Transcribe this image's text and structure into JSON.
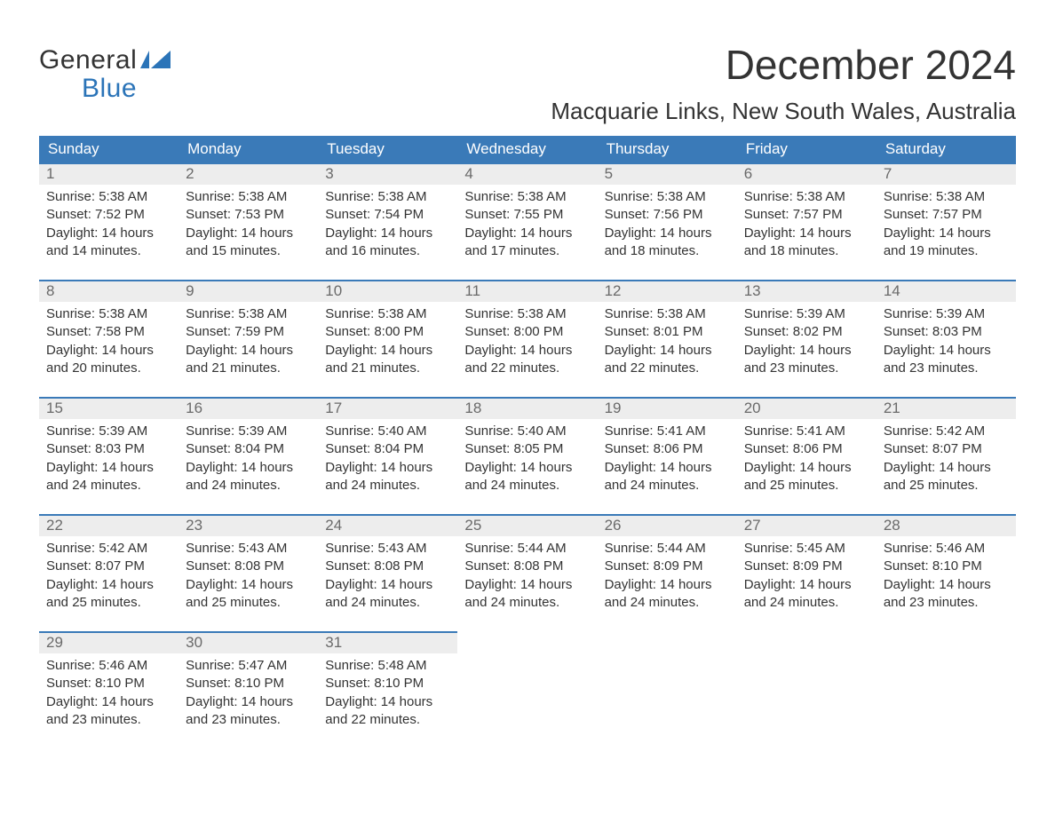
{
  "logo": {
    "line1": "General",
    "line2": "Blue",
    "flag_color": "#2b74b8"
  },
  "title": "December 2024",
  "location": "Macquarie Links, New South Wales, Australia",
  "colors": {
    "header_bg": "#3a7ab8",
    "header_text": "#ffffff",
    "daynum_bg": "#ededed",
    "daynum_text": "#6a6a6a",
    "body_text": "#333333",
    "border": "#3a7ab8",
    "background": "#ffffff"
  },
  "typography": {
    "title_fontsize": 46,
    "location_fontsize": 26,
    "header_fontsize": 17,
    "daynum_fontsize": 17,
    "body_fontsize": 15,
    "logo_fontsize": 30,
    "font_family": "Arial"
  },
  "week_headers": [
    "Sunday",
    "Monday",
    "Tuesday",
    "Wednesday",
    "Thursday",
    "Friday",
    "Saturday"
  ],
  "days": [
    {
      "n": "1",
      "sunrise": "5:38 AM",
      "sunset": "7:52 PM",
      "daylight": "14 hours and 14 minutes."
    },
    {
      "n": "2",
      "sunrise": "5:38 AM",
      "sunset": "7:53 PM",
      "daylight": "14 hours and 15 minutes."
    },
    {
      "n": "3",
      "sunrise": "5:38 AM",
      "sunset": "7:54 PM",
      "daylight": "14 hours and 16 minutes."
    },
    {
      "n": "4",
      "sunrise": "5:38 AM",
      "sunset": "7:55 PM",
      "daylight": "14 hours and 17 minutes."
    },
    {
      "n": "5",
      "sunrise": "5:38 AM",
      "sunset": "7:56 PM",
      "daylight": "14 hours and 18 minutes."
    },
    {
      "n": "6",
      "sunrise": "5:38 AM",
      "sunset": "7:57 PM",
      "daylight": "14 hours and 18 minutes."
    },
    {
      "n": "7",
      "sunrise": "5:38 AM",
      "sunset": "7:57 PM",
      "daylight": "14 hours and 19 minutes."
    },
    {
      "n": "8",
      "sunrise": "5:38 AM",
      "sunset": "7:58 PM",
      "daylight": "14 hours and 20 minutes."
    },
    {
      "n": "9",
      "sunrise": "5:38 AM",
      "sunset": "7:59 PM",
      "daylight": "14 hours and 21 minutes."
    },
    {
      "n": "10",
      "sunrise": "5:38 AM",
      "sunset": "8:00 PM",
      "daylight": "14 hours and 21 minutes."
    },
    {
      "n": "11",
      "sunrise": "5:38 AM",
      "sunset": "8:00 PM",
      "daylight": "14 hours and 22 minutes."
    },
    {
      "n": "12",
      "sunrise": "5:38 AM",
      "sunset": "8:01 PM",
      "daylight": "14 hours and 22 minutes."
    },
    {
      "n": "13",
      "sunrise": "5:39 AM",
      "sunset": "8:02 PM",
      "daylight": "14 hours and 23 minutes."
    },
    {
      "n": "14",
      "sunrise": "5:39 AM",
      "sunset": "8:03 PM",
      "daylight": "14 hours and 23 minutes."
    },
    {
      "n": "15",
      "sunrise": "5:39 AM",
      "sunset": "8:03 PM",
      "daylight": "14 hours and 24 minutes."
    },
    {
      "n": "16",
      "sunrise": "5:39 AM",
      "sunset": "8:04 PM",
      "daylight": "14 hours and 24 minutes."
    },
    {
      "n": "17",
      "sunrise": "5:40 AM",
      "sunset": "8:04 PM",
      "daylight": "14 hours and 24 minutes."
    },
    {
      "n": "18",
      "sunrise": "5:40 AM",
      "sunset": "8:05 PM",
      "daylight": "14 hours and 24 minutes."
    },
    {
      "n": "19",
      "sunrise": "5:41 AM",
      "sunset": "8:06 PM",
      "daylight": "14 hours and 24 minutes."
    },
    {
      "n": "20",
      "sunrise": "5:41 AM",
      "sunset": "8:06 PM",
      "daylight": "14 hours and 25 minutes."
    },
    {
      "n": "21",
      "sunrise": "5:42 AM",
      "sunset": "8:07 PM",
      "daylight": "14 hours and 25 minutes."
    },
    {
      "n": "22",
      "sunrise": "5:42 AM",
      "sunset": "8:07 PM",
      "daylight": "14 hours and 25 minutes."
    },
    {
      "n": "23",
      "sunrise": "5:43 AM",
      "sunset": "8:08 PM",
      "daylight": "14 hours and 25 minutes."
    },
    {
      "n": "24",
      "sunrise": "5:43 AM",
      "sunset": "8:08 PM",
      "daylight": "14 hours and 24 minutes."
    },
    {
      "n": "25",
      "sunrise": "5:44 AM",
      "sunset": "8:08 PM",
      "daylight": "14 hours and 24 minutes."
    },
    {
      "n": "26",
      "sunrise": "5:44 AM",
      "sunset": "8:09 PM",
      "daylight": "14 hours and 24 minutes."
    },
    {
      "n": "27",
      "sunrise": "5:45 AM",
      "sunset": "8:09 PM",
      "daylight": "14 hours and 24 minutes."
    },
    {
      "n": "28",
      "sunrise": "5:46 AM",
      "sunset": "8:10 PM",
      "daylight": "14 hours and 23 minutes."
    },
    {
      "n": "29",
      "sunrise": "5:46 AM",
      "sunset": "8:10 PM",
      "daylight": "14 hours and 23 minutes."
    },
    {
      "n": "30",
      "sunrise": "5:47 AM",
      "sunset": "8:10 PM",
      "daylight": "14 hours and 23 minutes."
    },
    {
      "n": "31",
      "sunrise": "5:48 AM",
      "sunset": "8:10 PM",
      "daylight": "14 hours and 22 minutes."
    }
  ],
  "labels": {
    "sunrise": "Sunrise:",
    "sunset": "Sunset:",
    "daylight": "Daylight:"
  },
  "layout": {
    "columns": 7,
    "rows": 5,
    "first_day_offset": 0,
    "total_days": 31
  }
}
